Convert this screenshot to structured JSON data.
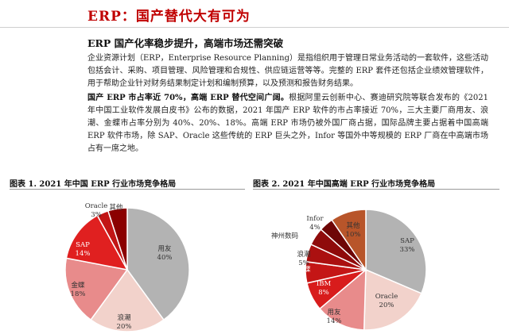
{
  "page": {
    "title": "ERP：国产替代大有可为",
    "subhead": "ERP 国产化率稳步提升，高端市场还需突破",
    "para1": "企业资源计划（ERP，Enterprise Resource Planning）是指组织用于管理日常业务活动的一套软件，这些活动包括会计、采购、项目管理、风险管理和合规性、供应链运营等等。完整的 ERP 套件还包括企业绩效管理软件，用于帮助企业针对财务结果制定计划和编制预算，以及预测和报告财务结果。",
    "para2_lead": "国产 ERP 市占率近 70%，高端 ERP 替代空间广阔。",
    "para2_body": "根据阿里云创新中心、赛迪研究院等联合发布的《2021 年中国工业软件发展白皮书》公布的数据，2021 年国产 ERP 软件的市占率接近 70%，三大主要厂商用友、浪潮、金蝶市占率分别为 40%、20%、18%。高端 ERP 市场仍被外国厂商占据，国际品牌主要占据着中国高端 ERP 软件市场，除 SAP、Oracle 这些传统的 ERP 巨头之外，Infor 等国外中等规模的 ERP 厂商在中高端市场占有一席之地。"
  },
  "colors": {
    "title_red": "#c00000",
    "yongyou": "#b3b3b3",
    "langchao": "#f2d2cb",
    "kingdee": "#e88b8b",
    "sap_left": "#e02020",
    "oracle_left": "#c21515",
    "other_left": "#8b0000",
    "sap_right": "#b3b3b3",
    "oracle_right": "#f2d2cb",
    "yongyou_right": "#e88b8b",
    "ibm_right": "#d81c1c",
    "kingdee_right": "#c41616",
    "langchao_right": "#ab1010",
    "shenzhou_right": "#8f0b0b",
    "infor_right": "#6e0606",
    "other_right": "#b8552a"
  },
  "chart_data": [
    {
      "type": "pie",
      "title": "图表 1. 2021 年中国 ERP 行业市场竞争格局",
      "slices": [
        {
          "name": "用友",
          "value": 40,
          "label": "40%"
        },
        {
          "name": "浪潮",
          "value": 20,
          "label": "20%"
        },
        {
          "name": "金蝶",
          "value": 18,
          "label": "18%"
        },
        {
          "name": "SAP",
          "value": 14,
          "label": "14%"
        },
        {
          "name": "Oracle",
          "value": 3,
          "label": "3%"
        },
        {
          "name": "其他",
          "value": 5,
          "label": ""
        }
      ]
    },
    {
      "type": "pie",
      "title": "图表 2. 2021 年中国高端 ERP 行业市场竞争格局",
      "slices": [
        {
          "name": "SAP",
          "value": 33,
          "label": "33%"
        },
        {
          "name": "Oracle",
          "value": 20,
          "label": "20%"
        },
        {
          "name": "用友",
          "value": 14,
          "label": "14%"
        },
        {
          "name": "IBM",
          "value": 8,
          "label": "8%"
        },
        {
          "name": "金蝶",
          "value": 6,
          "label": ""
        },
        {
          "name": "浪潮",
          "value": 5,
          "label": "5%"
        },
        {
          "name": "神州数码",
          "value": 5,
          "label": ""
        },
        {
          "name": "Infor",
          "value": 4,
          "label": "4%"
        },
        {
          "name": "其他",
          "value": 10,
          "label": "10%"
        }
      ]
    }
  ]
}
